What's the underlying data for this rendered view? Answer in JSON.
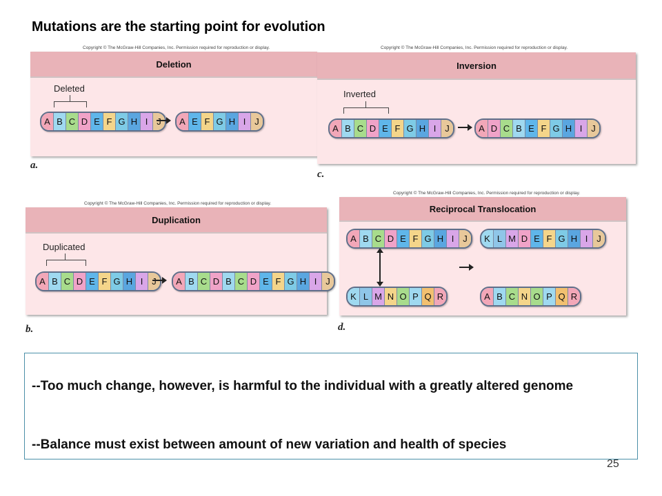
{
  "title": "Mutations are the starting point for evolution",
  "copyright": "Copyright © The McGraw-Hill Companies, Inc. Permission required for reproduction or display.",
  "gene_colors": {
    "A": "#f2a7b8",
    "B": "#9fd9f0",
    "C": "#a8dc8c",
    "D": "#f0a3c8",
    "E": "#5fb6ea",
    "F": "#f4d58a",
    "G": "#7ecbe6",
    "H": "#5aa6e0",
    "I": "#d9a6e8",
    "J": "#e8c89a",
    "K": "#9fd9f0",
    "L": "#8fc6e8",
    "M": "#d9a6e8",
    "N": "#f4d58a",
    "O": "#a8dc8c",
    "P": "#9fd9f0",
    "Q": "#f2c070",
    "R": "#f2a7b8"
  },
  "panels": {
    "deletion": {
      "header": "Deletion",
      "letter": "a.",
      "bracket_label": "Deleted",
      "before": [
        "A",
        "B",
        "C",
        "D",
        "E",
        "F",
        "G",
        "H",
        "I",
        "J"
      ],
      "after": [
        "A",
        "E",
        "F",
        "G",
        "H",
        "I",
        "J"
      ]
    },
    "inversion": {
      "header": "Inversion",
      "letter": "c.",
      "bracket_label": "Inverted",
      "before": [
        "A",
        "B",
        "C",
        "D",
        "E",
        "F",
        "G",
        "H",
        "I",
        "J"
      ],
      "after": [
        "A",
        "D",
        "C",
        "B",
        "E",
        "F",
        "G",
        "H",
        "I",
        "J"
      ]
    },
    "duplication": {
      "header": "Duplication",
      "letter": "b.",
      "bracket_label": "Duplicated",
      "before": [
        "A",
        "B",
        "C",
        "D",
        "E",
        "F",
        "G",
        "H",
        "I",
        "J"
      ],
      "after": [
        "A",
        "B",
        "C",
        "D",
        "B",
        "C",
        "D",
        "E",
        "F",
        "G",
        "H",
        "I",
        "J"
      ]
    },
    "translocation": {
      "header": "Reciprocal Translocation",
      "letter": "d.",
      "top_before": [
        "A",
        "B",
        "C",
        "D",
        "E",
        "F",
        "G",
        "H",
        "I",
        "J"
      ],
      "bottom_before": [
        "K",
        "L",
        "M",
        "N",
        "O",
        "P",
        "Q",
        "R"
      ],
      "top_after": [
        "K",
        "L",
        "M",
        "D",
        "E",
        "F",
        "G",
        "H",
        "I",
        "J"
      ],
      "bottom_after": [
        "A",
        "B",
        "C",
        "N",
        "O",
        "P",
        "Q",
        "R"
      ]
    }
  },
  "notes": [
    "--Too much change, however, is harmful to the individual with a greatly altered genome",
    "--Balance must exist between amount of new variation and health of species"
  ],
  "page_number": "25"
}
